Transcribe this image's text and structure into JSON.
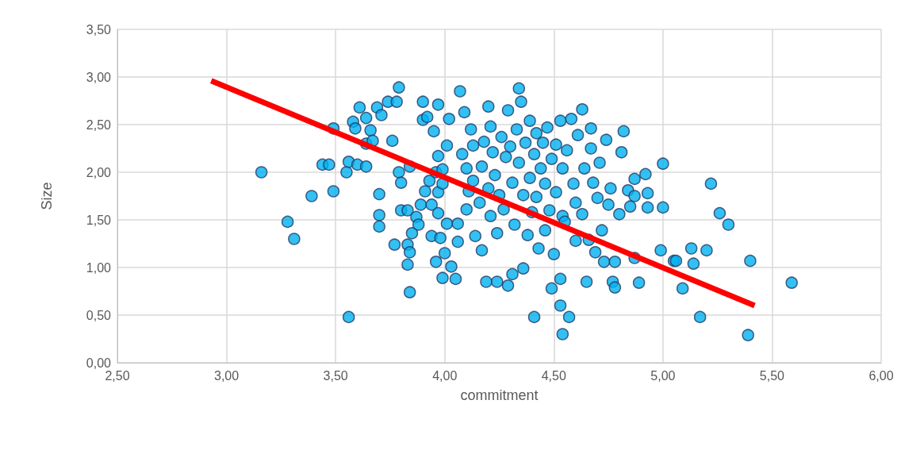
{
  "chart_data": {
    "type": "scatter",
    "xlabel": "commitment",
    "ylabel": "Size",
    "xlim": [
      2.5,
      6
    ],
    "ylim": [
      0,
      3.5
    ],
    "xticks": [
      {
        "value": 2.5,
        "label": "2,50"
      },
      {
        "value": 3,
        "label": "3,00"
      },
      {
        "value": 3.5,
        "label": "3,50"
      },
      {
        "value": 4,
        "label": "4,00"
      },
      {
        "value": 4.5,
        "label": "4,50"
      },
      {
        "value": 5,
        "label": "5,00"
      },
      {
        "value": 5.5,
        "label": "5,50"
      },
      {
        "value": 6,
        "label": "6,00"
      }
    ],
    "yticks": [
      {
        "value": 0,
        "label": "0,00"
      },
      {
        "value": 0.5,
        "label": "0,50"
      },
      {
        "value": 1,
        "label": "1,00"
      },
      {
        "value": 1.5,
        "label": "1,50"
      },
      {
        "value": 2,
        "label": "2,00"
      },
      {
        "value": 2.5,
        "label": "2,50"
      },
      {
        "value": 3,
        "label": "3,00"
      },
      {
        "value": 3.5,
        "label": "3,50"
      }
    ],
    "grid": true,
    "series": [
      {
        "color": "#00b0f0",
        "marker": "circle",
        "x": [
          3.16,
          3.28,
          3.31,
          3.39,
          3.44,
          3.47,
          3.49,
          3.49,
          3.55,
          3.56,
          3.56,
          3.58,
          3.59,
          3.6,
          3.61,
          3.64,
          3.64,
          3.66,
          3.67,
          3.64,
          3.69,
          3.7,
          3.7,
          3.7,
          3.71,
          3.74,
          3.76,
          3.77,
          3.78,
          3.79,
          3.79,
          3.8,
          3.8,
          3.83,
          3.83,
          3.83,
          3.84,
          3.84,
          3.84,
          3.85,
          3.87,
          3.88,
          3.89,
          3.9,
          3.9,
          3.91,
          3.92,
          3.93,
          3.94,
          3.94,
          3.95,
          3.96,
          3.96,
          3.97,
          3.97,
          3.97,
          3.97,
          3.98,
          3.99,
          3.99,
          3.99,
          4.0,
          4.01,
          4.01,
          4.02,
          4.03,
          4.05,
          4.06,
          4.06,
          4.07,
          4.08,
          4.09,
          4.1,
          4.1,
          4.11,
          4.12,
          4.13,
          4.13,
          4.14,
          4.16,
          4.17,
          4.17,
          4.18,
          4.19,
          4.2,
          4.2,
          4.21,
          4.21,
          4.22,
          4.23,
          4.24,
          4.24,
          4.25,
          4.26,
          4.27,
          4.28,
          4.29,
          4.29,
          4.3,
          4.31,
          4.31,
          4.32,
          4.33,
          4.34,
          4.34,
          4.35,
          4.36,
          4.36,
          4.37,
          4.38,
          4.39,
          4.39,
          4.4,
          4.41,
          4.41,
          4.42,
          4.42,
          4.43,
          4.44,
          4.45,
          4.46,
          4.46,
          4.47,
          4.48,
          4.49,
          4.49,
          4.5,
          4.51,
          4.51,
          4.53,
          4.53,
          4.54,
          4.54,
          4.55,
          4.56,
          4.53,
          4.54,
          4.57,
          4.58,
          4.59,
          4.6,
          4.6,
          4.61,
          4.63,
          4.63,
          4.64,
          4.65,
          4.66,
          4.67,
          4.67,
          4.68,
          4.69,
          4.7,
          4.71,
          4.72,
          4.73,
          4.74,
          4.75,
          4.76,
          4.77,
          4.78,
          4.78,
          4.8,
          4.81,
          4.82,
          4.84,
          4.87,
          4.92,
          4.87,
          4.93,
          4.85,
          4.93,
          4.87,
          4.89,
          5.0,
          5.0,
          4.99,
          5.05,
          5.06,
          5.13,
          5.14,
          5.2,
          5.09,
          5.17,
          5.22,
          5.26,
          5.3,
          5.4,
          5.39,
          5.59
        ],
        "values": [
          2.0,
          1.48,
          1.3,
          1.75,
          2.08,
          2.08,
          1.8,
          2.46,
          2.0,
          0.48,
          2.11,
          2.53,
          2.46,
          2.08,
          2.68,
          2.3,
          2.57,
          2.44,
          2.33,
          2.06,
          2.68,
          1.55,
          1.43,
          1.77,
          2.6,
          2.74,
          2.33,
          1.24,
          2.74,
          2.89,
          2.0,
          1.89,
          1.6,
          1.6,
          1.24,
          1.03,
          1.16,
          2.06,
          0.74,
          1.36,
          1.53,
          1.45,
          1.66,
          2.55,
          2.74,
          1.8,
          2.58,
          1.91,
          1.66,
          1.33,
          2.43,
          2.0,
          1.06,
          2.71,
          2.17,
          1.57,
          1.79,
          1.31,
          0.89,
          1.88,
          2.03,
          1.15,
          1.46,
          2.28,
          2.56,
          1.01,
          0.88,
          1.46,
          1.27,
          2.85,
          2.19,
          2.63,
          1.61,
          2.04,
          1.8,
          2.45,
          1.91,
          2.28,
          1.33,
          1.68,
          2.06,
          1.18,
          2.32,
          0.85,
          2.69,
          1.83,
          1.54,
          2.48,
          2.21,
          1.97,
          1.36,
          0.85,
          1.76,
          2.37,
          1.61,
          2.16,
          0.81,
          2.65,
          2.27,
          0.93,
          1.89,
          1.45,
          2.45,
          2.88,
          2.1,
          2.74,
          0.99,
          1.76,
          2.31,
          1.34,
          1.94,
          2.54,
          1.58,
          2.19,
          0.48,
          1.74,
          2.41,
          1.2,
          2.04,
          2.31,
          1.39,
          1.88,
          2.47,
          1.6,
          2.14,
          0.78,
          1.14,
          2.29,
          1.79,
          2.54,
          0.88,
          2.04,
          1.54,
          1.48,
          2.23,
          0.6,
          0.3,
          0.48,
          2.56,
          1.88,
          1.28,
          1.68,
          2.39,
          2.66,
          1.56,
          2.04,
          0.85,
          1.29,
          2.25,
          2.46,
          1.89,
          1.16,
          1.73,
          2.1,
          1.39,
          1.06,
          2.34,
          1.66,
          1.83,
          0.85,
          0.79,
          1.06,
          1.56,
          2.21,
          2.43,
          1.81,
          1.93,
          1.98,
          1.75,
          1.78,
          1.64,
          1.63,
          1.1,
          0.84,
          2.09,
          1.63,
          1.18,
          1.07,
          1.07,
          1.2,
          1.04,
          1.18,
          0.78,
          0.48,
          1.88,
          1.57,
          1.45,
          1.07,
          0.29,
          0.84
        ]
      },
      {
        "type": "line",
        "color": "#ff0000",
        "marker": "none",
        "line_style": "solid",
        "x": [
          2.93,
          5.42
        ],
        "values": [
          2.96,
          0.6
        ]
      }
    ]
  }
}
